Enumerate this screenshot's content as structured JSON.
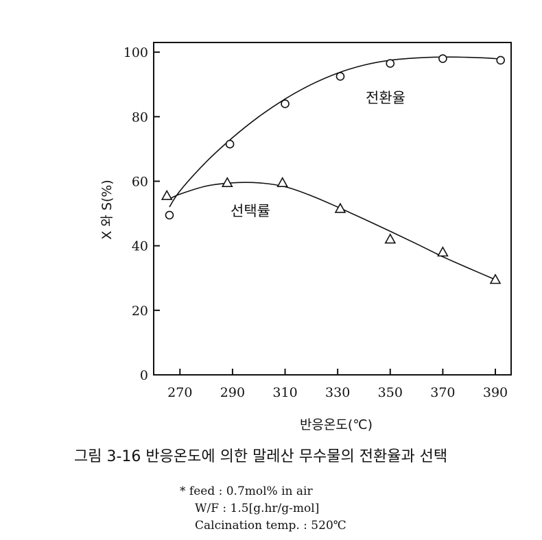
{
  "chart_data": {
    "type": "line",
    "xlabel": "반응온도(℃)",
    "ylabel": "X 와 S(%)",
    "xlim": [
      260,
      396
    ],
    "ylim": [
      0,
      103
    ],
    "x_ticks": [
      270,
      290,
      310,
      330,
      350,
      370,
      390
    ],
    "y_ticks": [
      0,
      20,
      40,
      60,
      80,
      100
    ],
    "grid": false,
    "legend": "none",
    "series": [
      {
        "name": "전환율",
        "marker": "circle",
        "points": [
          {
            "x": 266,
            "y": 49.5
          },
          {
            "x": 289,
            "y": 71.5
          },
          {
            "x": 310,
            "y": 84
          },
          {
            "x": 331,
            "y": 92.5
          },
          {
            "x": 350,
            "y": 96.5
          },
          {
            "x": 370,
            "y": 98
          },
          {
            "x": 392,
            "y": 97.5
          }
        ],
        "curve": [
          {
            "x": 266,
            "y": 52
          },
          {
            "x": 270,
            "y": 57
          },
          {
            "x": 280,
            "y": 66
          },
          {
            "x": 290,
            "y": 73.5
          },
          {
            "x": 300,
            "y": 80
          },
          {
            "x": 310,
            "y": 85.5
          },
          {
            "x": 320,
            "y": 90
          },
          {
            "x": 330,
            "y": 93.5
          },
          {
            "x": 340,
            "y": 96
          },
          {
            "x": 350,
            "y": 97.5
          },
          {
            "x": 360,
            "y": 98.2
          },
          {
            "x": 370,
            "y": 98.5
          },
          {
            "x": 380,
            "y": 98.4
          },
          {
            "x": 390,
            "y": 98
          },
          {
            "x": 392,
            "y": 97.5
          }
        ]
      },
      {
        "name": "선택률",
        "marker": "triangle",
        "points": [
          {
            "x": 265,
            "y": 55.5
          },
          {
            "x": 288,
            "y": 59.5
          },
          {
            "x": 309,
            "y": 59.5
          },
          {
            "x": 331,
            "y": 51.5
          },
          {
            "x": 350,
            "y": 42
          },
          {
            "x": 370,
            "y": 38
          },
          {
            "x": 390,
            "y": 29.5
          }
        ],
        "curve": [
          {
            "x": 266,
            "y": 54.5
          },
          {
            "x": 270,
            "y": 56
          },
          {
            "x": 280,
            "y": 58.5
          },
          {
            "x": 290,
            "y": 59.5
          },
          {
            "x": 300,
            "y": 59.5
          },
          {
            "x": 310,
            "y": 58.3
          },
          {
            "x": 320,
            "y": 55.5
          },
          {
            "x": 330,
            "y": 52
          },
          {
            "x": 340,
            "y": 48.3
          },
          {
            "x": 350,
            "y": 44.5
          },
          {
            "x": 360,
            "y": 40.6
          },
          {
            "x": 370,
            "y": 36.6
          },
          {
            "x": 380,
            "y": 33
          },
          {
            "x": 390,
            "y": 29.5
          }
        ]
      }
    ],
    "annotations": [
      "전환율",
      "선택률"
    ]
  },
  "caption": "그림 3-16   반응온도에 의한 말레산 무수물의 전환율과 선택",
  "notes": [
    "* feed : 0.7mol% in air",
    "W/F : 1.5[g.hr/g-mol]",
    "Calcination temp. : 520℃"
  ]
}
